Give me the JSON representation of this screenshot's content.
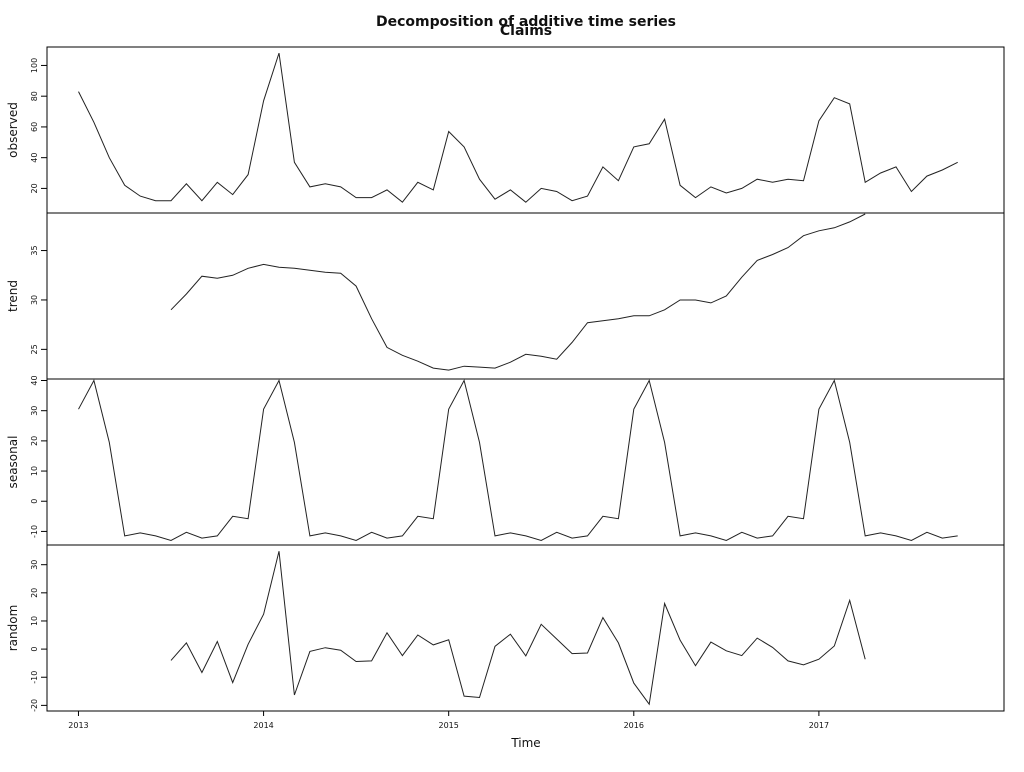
{
  "chart_data": {
    "type": "line",
    "title": "Decomposition of additive time series",
    "subtitle": "Claims",
    "xlabel": "Time",
    "x_ticks": [
      "2013",
      "2014",
      "2015",
      "2016",
      "2017"
    ],
    "x_start": 2013,
    "x_frequency": 12,
    "grid": false,
    "series": [
      {
        "name": "observed",
        "ylim": [
          4,
          112
        ],
        "y_ticks": [
          20,
          40,
          60,
          80,
          100
        ],
        "values": [
          83,
          63,
          40,
          22,
          15,
          12,
          12,
          23,
          12,
          24,
          16,
          29,
          77,
          108,
          37,
          21,
          23,
          21,
          14,
          14,
          19,
          11,
          24,
          19,
          57,
          47,
          26,
          13,
          19,
          11,
          20,
          18,
          12,
          15,
          34,
          25,
          47,
          49,
          65,
          22,
          14,
          21,
          17,
          20,
          26,
          24,
          26,
          25,
          64,
          79,
          75,
          24,
          30,
          34,
          18,
          28,
          32,
          37
        ]
      },
      {
        "name": "trend",
        "ylim": [
          22.0,
          38.8
        ],
        "y_ticks": [
          25,
          30,
          35
        ],
        "values": [
          null,
          null,
          null,
          null,
          null,
          null,
          29.0,
          30.6,
          32.4,
          32.2,
          32.5,
          33.2,
          33.6,
          33.3,
          33.2,
          33.0,
          32.8,
          32.7,
          31.4,
          28.1,
          25.2,
          24.4,
          23.8,
          23.1,
          22.9,
          23.3,
          23.2,
          23.1,
          23.7,
          24.5,
          24.3,
          24.0,
          25.7,
          27.7,
          27.9,
          28.1,
          28.4,
          28.4,
          29.0,
          30.0,
          30.0,
          29.7,
          30.4,
          32.3,
          34.0,
          34.6,
          35.3,
          36.5,
          37.0,
          37.3,
          37.9,
          38.7,
          null,
          null,
          null,
          null,
          null,
          null
        ]
      },
      {
        "name": "seasonal",
        "ylim": [
          -14.5,
          40.5
        ],
        "y_ticks": [
          -10,
          0,
          10,
          20,
          30,
          40
        ],
        "values": [
          30.5,
          40,
          19.5,
          -11.5,
          -10.5,
          -11.5,
          -13,
          -10.3,
          -12.2,
          -11.5,
          -5,
          -5.8,
          30.5,
          40,
          19.5,
          -11.5,
          -10.5,
          -11.5,
          -13,
          -10.3,
          -12.2,
          -11.5,
          -5,
          -5.8,
          30.5,
          40,
          19.5,
          -11.5,
          -10.5,
          -11.5,
          -13,
          -10.3,
          -12.2,
          -11.5,
          -5,
          -5.8,
          30.5,
          40,
          19.5,
          -11.5,
          -10.5,
          -11.5,
          -13,
          -10.3,
          -12.2,
          -11.5,
          -5,
          -5.8,
          30.5,
          40,
          19.5,
          -11.5,
          -10.5,
          -11.5,
          -13,
          -10.3,
          -12.2,
          -11.5
        ]
      },
      {
        "name": "random",
        "ylim": [
          -22,
          37
        ],
        "y_ticks": [
          -20,
          -10,
          0,
          10,
          20,
          30
        ],
        "values": [
          null,
          null,
          null,
          null,
          null,
          null,
          -4,
          2.2,
          -8.3,
          2.7,
          -11.9,
          1.7,
          12.4,
          34.8,
          -16.3,
          -0.8,
          0.5,
          -0.4,
          -4.4,
          -4.2,
          5.8,
          -2.3,
          5.0,
          1.5,
          3.3,
          -16.7,
          -17.2,
          1.0,
          5.3,
          -2.4,
          8.8,
          3.6,
          -1.6,
          -1.4,
          11.2,
          2.2,
          -12.1,
          -19.6,
          16.2,
          3.2,
          -5.9,
          2.5,
          -0.6,
          -2.3,
          3.9,
          0.6,
          -4.2,
          -5.6,
          -3.6,
          1.1,
          17.3,
          -3.6,
          null,
          null,
          null,
          null,
          null,
          null
        ]
      }
    ]
  }
}
